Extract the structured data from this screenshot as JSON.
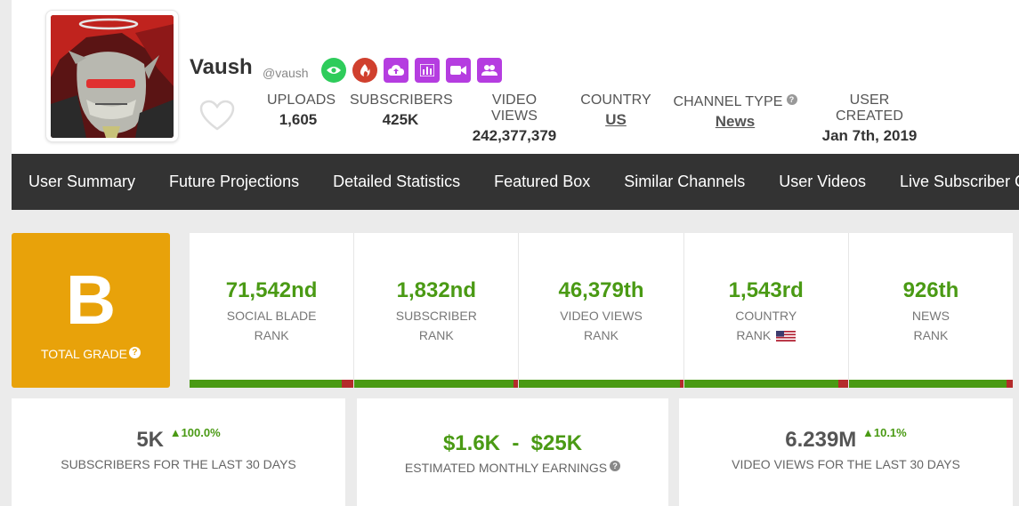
{
  "channel": {
    "name": "Vaush",
    "handle": "@vaush"
  },
  "badges": [
    {
      "icon": "eye-icon",
      "color": "#2ecc5b"
    },
    {
      "icon": "fire-icon",
      "color": "#d0402e"
    },
    {
      "icon": "cloud-upload-icon",
      "color": "#b53de0"
    },
    {
      "icon": "bar-chart-icon",
      "color": "#b53de0"
    },
    {
      "icon": "video-camera-icon",
      "color": "#b53de0"
    },
    {
      "icon": "users-icon",
      "color": "#b53de0"
    }
  ],
  "stats": {
    "uploads_label": "UPLOADS",
    "uploads_value": "1,605",
    "subscribers_label": "SUBSCRIBERS",
    "subscribers_value": "425K",
    "views_label": "VIDEO VIEWS",
    "views_value": "242,377,379",
    "country_label": "COUNTRY",
    "country_value": "US",
    "type_label": "CHANNEL TYPE",
    "type_value": "News",
    "created_label": "USER CREATED",
    "created_value": "Jan 7th, 2019"
  },
  "nav": [
    "User Summary",
    "Future Projections",
    "Detailed Statistics",
    "Featured Box",
    "Similar Channels",
    "User Videos",
    "Live Subscriber Count"
  ],
  "grade": {
    "letter": "B",
    "label": "TOTAL GRADE",
    "color": "#e8a20a"
  },
  "ranks": [
    {
      "value": "71,542nd",
      "line1": "SOCIAL BLADE",
      "line2": "RANK",
      "green_fraction": 0.93
    },
    {
      "value": "1,832nd",
      "line1": "SUBSCRIBER",
      "line2": "RANK",
      "green_fraction": 0.97
    },
    {
      "value": "46,379th",
      "line1": "VIDEO VIEWS",
      "line2": "RANK",
      "green_fraction": 0.98
    },
    {
      "value": "1,543rd",
      "line1": "COUNTRY",
      "line2": "RANK",
      "green_fraction": 0.94
    },
    {
      "value": "926th",
      "line1": "NEWS",
      "line2": "RANK",
      "green_fraction": 0.96
    }
  ],
  "cards": {
    "subs_value": "5K",
    "subs_delta": "100.0%",
    "subs_label": "SUBSCRIBERS FOR THE LAST 30 DAYS",
    "earnings_value": "$1.6K  -  $25K",
    "earnings_label": "ESTIMATED MONTHLY EARNINGS",
    "views_value": "6.239M",
    "views_delta": "10.1%",
    "views_label": "VIDEO VIEWS FOR THE LAST 30 DAYS"
  },
  "colors": {
    "green": "#4a9a14",
    "red": "#b42b2b",
    "nav_bg": "#333333"
  }
}
